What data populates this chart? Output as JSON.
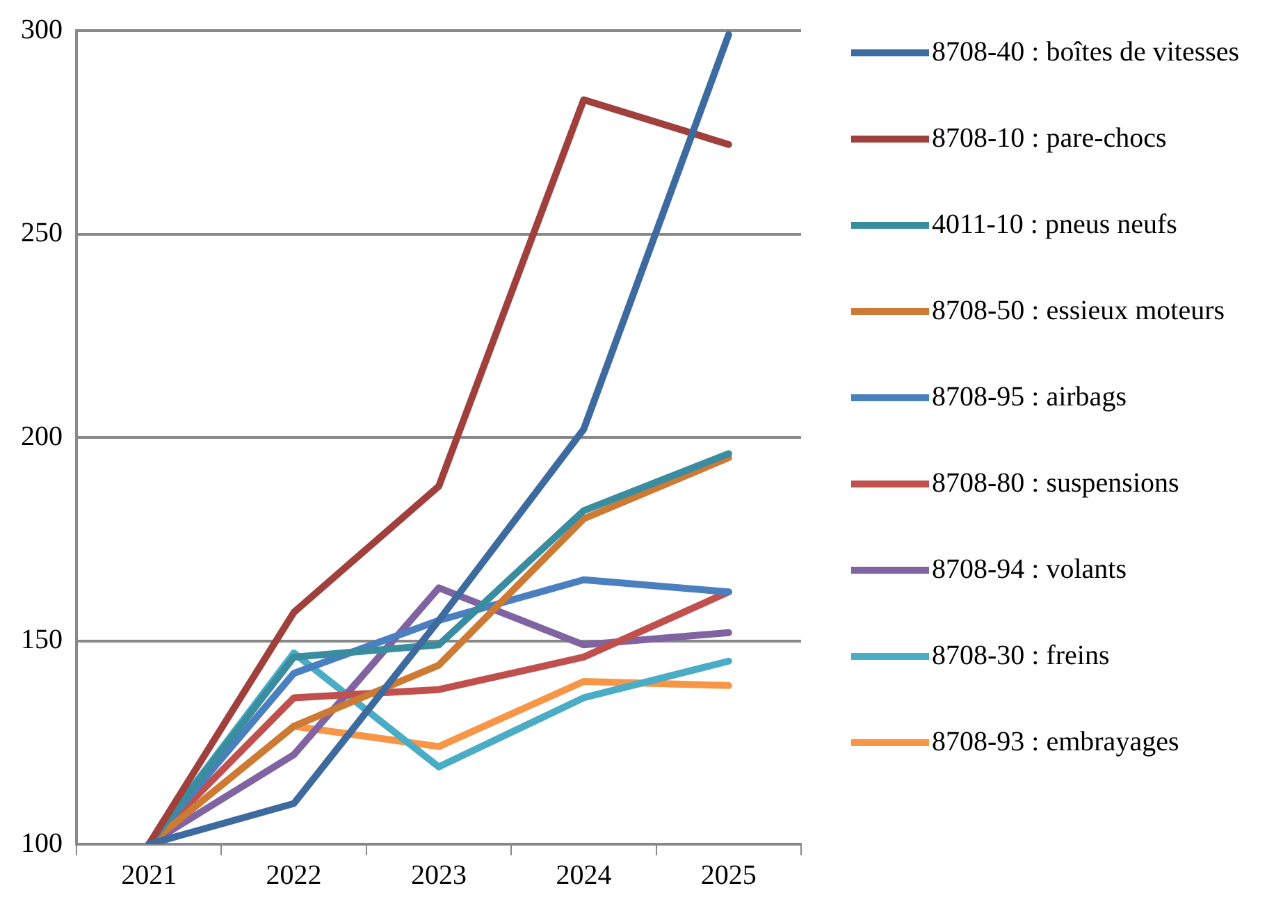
{
  "chart_data": {
    "type": "line",
    "categories": [
      "2021",
      "2022",
      "2023",
      "2024",
      "2025"
    ],
    "series": [
      {
        "name": "8708-40 : boîtes de vitesses",
        "color": "#3d6a9f",
        "values": [
          100,
          110,
          155,
          202,
          299
        ]
      },
      {
        "name": "8708-10 : pare-chocs",
        "color": "#a0403c",
        "values": [
          100,
          157,
          188,
          283,
          272
        ]
      },
      {
        "name": "4011-10 : pneus neufs",
        "color": "#3a8d9e",
        "values": [
          100,
          146,
          149,
          182,
          196
        ]
      },
      {
        "name": "8708-50 : essieux moteurs",
        "color": "#cc7a34",
        "values": [
          100,
          129,
          144,
          180,
          195
        ]
      },
      {
        "name": "8708-95 : airbags",
        "color": "#4a7fc0",
        "values": [
          100,
          142,
          155,
          165,
          162
        ]
      },
      {
        "name": "8708-80 : suspensions",
        "color": "#c0504d",
        "values": [
          100,
          136,
          138,
          146,
          162
        ]
      },
      {
        "name": "8708-94 : volants",
        "color": "#8064a2",
        "values": [
          100,
          122,
          163,
          149,
          152
        ]
      },
      {
        "name": "8708-30 : freins",
        "color": "#4bacc6",
        "values": [
          100,
          147,
          119,
          136,
          145
        ]
      },
      {
        "name": "8708-93 : embrayages",
        "color": "#f79646",
        "values": [
          100,
          129,
          124,
          140,
          139
        ]
      }
    ],
    "ylim": [
      100,
      300
    ],
    "yticks": [
      100,
      150,
      200,
      250,
      300
    ],
    "grid": "y",
    "legend": "right",
    "marker": "none",
    "line_style": "solid"
  }
}
